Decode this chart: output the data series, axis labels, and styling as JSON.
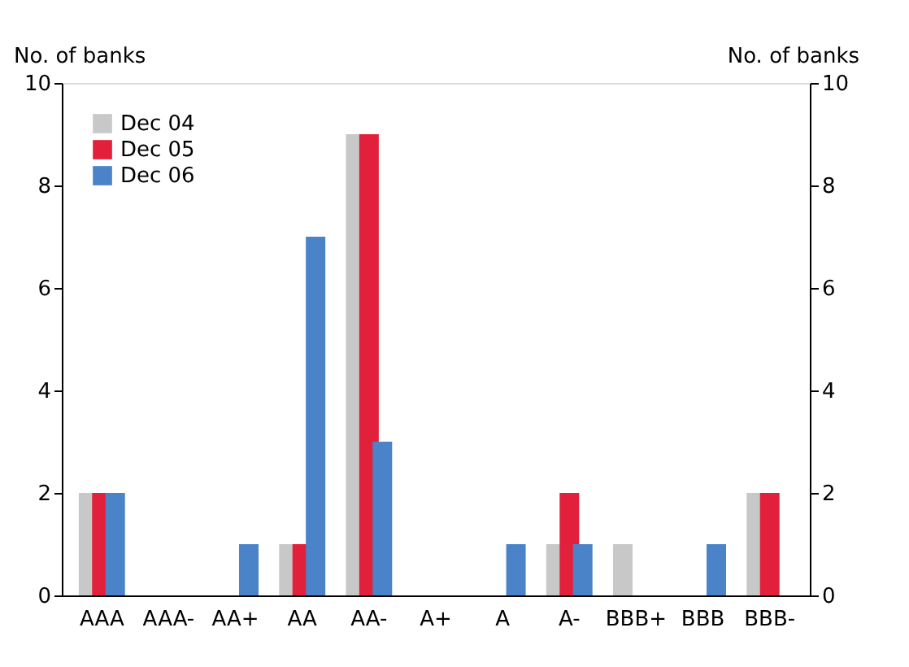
{
  "chart_data": {
    "type": "bar",
    "ylabel": "No. of banks",
    "y2label": "No. of banks",
    "categories": [
      "AAA",
      "AAA-",
      "AA+",
      "AA",
      "AA-",
      "A+",
      "A",
      "A-",
      "BBB+",
      "BBB",
      "BBB-"
    ],
    "series": [
      {
        "name": "Dec 04",
        "color": "#c8c8c8",
        "values": [
          2,
          0,
          0,
          1,
          9,
          0,
          0,
          1,
          1,
          0,
          2
        ]
      },
      {
        "name": "Dec 05",
        "color": "#e2203b",
        "values": [
          2,
          0,
          0,
          1,
          9,
          0,
          0,
          2,
          0,
          0,
          2
        ]
      },
      {
        "name": "Dec 06",
        "color": "#4a83c8",
        "values": [
          2,
          0,
          1,
          7,
          3,
          0,
          1,
          1,
          0,
          1,
          0
        ]
      }
    ],
    "ylim": [
      0,
      10
    ],
    "yticks": [
      0,
      2,
      4,
      6,
      8,
      10
    ],
    "y2lim": [
      0,
      10
    ],
    "y2ticks": [
      0,
      2,
      4,
      6,
      8,
      10
    ],
    "legend": "top left",
    "grid": false
  }
}
